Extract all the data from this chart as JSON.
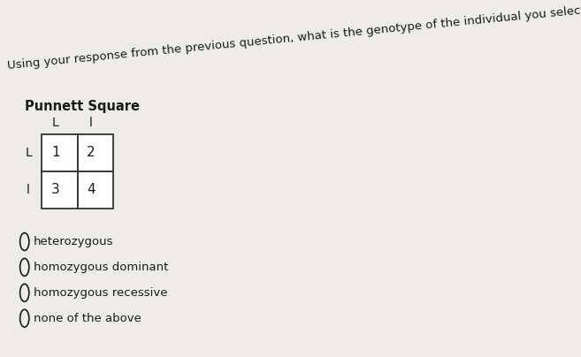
{
  "question_text": "Using your response from the previous question, what is the genotype of the individual you selected?",
  "punnett_title": "Punnett Square",
  "col_headers": [
    "L",
    "l"
  ],
  "row_headers": [
    "L",
    "l"
  ],
  "cell_values": [
    [
      "1",
      "2"
    ],
    [
      "3",
      "4"
    ]
  ],
  "options": [
    "heterozygous",
    "homozygous dominant",
    "homozygous recessive",
    "none of the above"
  ],
  "bg_color": "#eeece9",
  "table_line_color": "#333333",
  "text_color": "#1a1a1a",
  "question_fontsize": 9.5,
  "option_fontsize": 9.5,
  "title_fontsize": 10.5,
  "cell_fontsize": 11,
  "header_fontsize": 10,
  "question_rotation": 5.5
}
